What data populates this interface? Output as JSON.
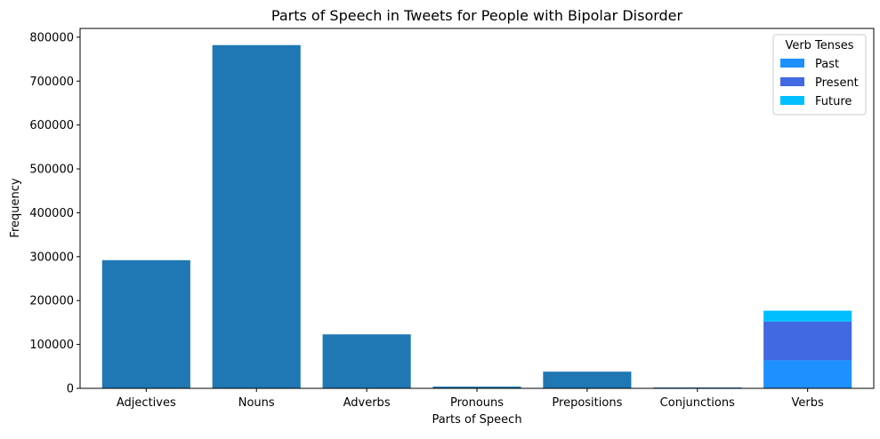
{
  "chart_data": {
    "type": "bar",
    "title": "Parts of Speech in Tweets for People with Bipolar Disorder",
    "xlabel": "Parts of Speech",
    "ylabel": "Frequency",
    "ylim": [
      0,
      820000
    ],
    "yticks": [
      0,
      100000,
      200000,
      300000,
      400000,
      500000,
      600000,
      700000,
      800000
    ],
    "grid": false,
    "categories": [
      "Adjectives",
      "Nouns",
      "Adverbs",
      "Pronouns",
      "Prepositions",
      "Conjunctions",
      "Verbs"
    ],
    "values": [
      292000,
      782000,
      123000,
      4000,
      38000,
      2000,
      null
    ],
    "bar_color": "#1f77b4",
    "stacked": {
      "category": "Verbs",
      "segments": [
        {
          "name": "Past",
          "value": 64000,
          "color": "#1e90ff"
        },
        {
          "name": "Present",
          "value": 88000,
          "color": "#4169e1"
        },
        {
          "name": "Future",
          "value": 25000,
          "color": "#00bfff"
        }
      ]
    },
    "legend": {
      "title": "Verb Tenses",
      "placement": "top-right",
      "entries": [
        "Past",
        "Present",
        "Future"
      ]
    }
  }
}
